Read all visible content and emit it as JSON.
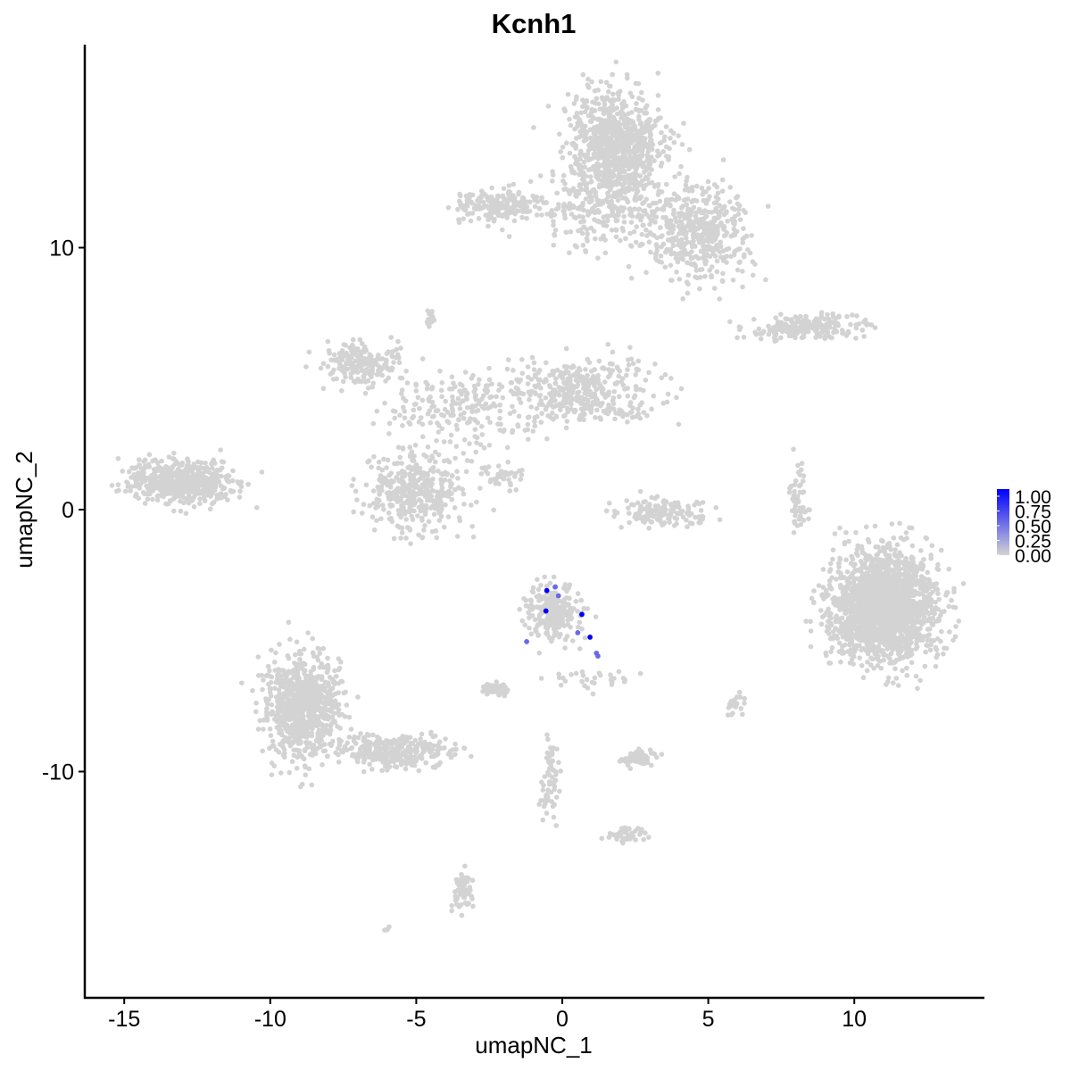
{
  "chart_data": {
    "type": "scatter",
    "title": "Kcnh1",
    "xlabel": "umapNC_1",
    "ylabel": "umapNC_2",
    "xlim": [
      -16.4,
      14.3
    ],
    "ylim": [
      -18.3,
      17.9
    ],
    "x_ticks": [
      -15,
      -10,
      -5,
      0,
      5,
      10
    ],
    "y_ticks": [
      -10,
      0,
      10
    ],
    "grid": false,
    "colors": {
      "low": "#d3d3d3",
      "high": "#0000ff"
    },
    "legend": {
      "placement": "right",
      "type": "colorbar",
      "min": 0,
      "max": 1,
      "labels": [
        "1.00",
        "0.75",
        "0.50",
        "0.25",
        "0.00"
      ]
    },
    "background_clusters_expression": 0,
    "background_clusters": [
      {
        "cx": 1.8,
        "cy": 13.8,
        "sx": 1.0,
        "sy": 1.4,
        "n": 900
      },
      {
        "cx": 4.7,
        "cy": 10.6,
        "sx": 1.1,
        "sy": 1.1,
        "n": 450
      },
      {
        "cx": 1.5,
        "cy": 11.3,
        "sx": 1.5,
        "sy": 0.8,
        "n": 200
      },
      {
        "cx": -2.1,
        "cy": 11.6,
        "sx": 1.0,
        "sy": 0.35,
        "n": 200
      },
      {
        "cx": 8.4,
        "cy": 6.95,
        "sx": 1.4,
        "sy": 0.25,
        "n": 200
      },
      {
        "cx": -6.9,
        "cy": 5.6,
        "sx": 0.8,
        "sy": 0.5,
        "n": 200
      },
      {
        "cx": -5.0,
        "cy": 0.7,
        "sx": 1.1,
        "sy": 0.9,
        "n": 400
      },
      {
        "cx": 0.6,
        "cy": 4.5,
        "sx": 1.6,
        "sy": 0.8,
        "n": 400
      },
      {
        "cx": -3.7,
        "cy": 3.8,
        "sx": 1.4,
        "sy": 0.9,
        "n": 200
      },
      {
        "cx": -13.1,
        "cy": 1.05,
        "sx": 1.1,
        "sy": 0.5,
        "n": 600
      },
      {
        "cx": 11.0,
        "cy": -3.7,
        "sx": 1.1,
        "sy": 1.3,
        "n": 2000
      },
      {
        "cx": -8.9,
        "cy": -7.5,
        "sx": 0.8,
        "sy": 1.2,
        "n": 800
      },
      {
        "cx": -5.8,
        "cy": -9.2,
        "sx": 1.2,
        "sy": 0.4,
        "n": 300
      },
      {
        "cx": -0.3,
        "cy": -3.9,
        "sx": 0.55,
        "sy": 0.7,
        "n": 250
      },
      {
        "cx": -2.3,
        "cy": -6.85,
        "sx": 0.3,
        "sy": 0.15,
        "n": 60
      },
      {
        "cx": 2.6,
        "cy": -9.5,
        "sx": 0.35,
        "sy": 0.2,
        "n": 60
      },
      {
        "cx": 2.1,
        "cy": -12.4,
        "sx": 0.4,
        "sy": 0.2,
        "n": 40
      },
      {
        "cx": -3.4,
        "cy": -14.6,
        "sx": 0.2,
        "sy": 0.5,
        "n": 60
      },
      {
        "cx": 3.4,
        "cy": -0.1,
        "sx": 0.9,
        "sy": 0.35,
        "n": 150
      },
      {
        "cx": 8.1,
        "cy": 0.4,
        "sx": 0.2,
        "sy": 0.8,
        "n": 60
      },
      {
        "cx": -4.5,
        "cy": 7.35,
        "sx": 0.1,
        "sy": 0.2,
        "n": 15
      },
      {
        "cx": -0.4,
        "cy": -10.5,
        "sx": 0.2,
        "sy": 1.0,
        "n": 60
      },
      {
        "cx": -2.1,
        "cy": 1.2,
        "sx": 0.5,
        "sy": 0.3,
        "n": 40
      },
      {
        "cx": 6.0,
        "cy": -7.5,
        "sx": 0.3,
        "sy": 0.3,
        "n": 20
      },
      {
        "cx": 1.0,
        "cy": -6.5,
        "sx": 1.0,
        "sy": 0.3,
        "n": 30
      },
      {
        "cx": -6.0,
        "cy": -16.0,
        "sx": 0.1,
        "sy": 0.1,
        "n": 4
      }
    ],
    "expressing_points": [
      {
        "x": -0.53,
        "y": -3.09,
        "value": 1.0
      },
      {
        "x": -0.24,
        "y": -2.95,
        "value": 0.5
      },
      {
        "x": -0.13,
        "y": -3.29,
        "value": 0.5
      },
      {
        "x": -0.56,
        "y": -3.87,
        "value": 1.0
      },
      {
        "x": 0.67,
        "y": -4.0,
        "value": 1.0
      },
      {
        "x": 0.53,
        "y": -4.7,
        "value": 0.5
      },
      {
        "x": 0.95,
        "y": -4.87,
        "value": 1.0
      },
      {
        "x": -1.22,
        "y": -5.04,
        "value": 0.5
      },
      {
        "x": 1.17,
        "y": -5.48,
        "value": 0.5
      },
      {
        "x": 1.22,
        "y": -5.59,
        "value": 0.5
      }
    ]
  }
}
